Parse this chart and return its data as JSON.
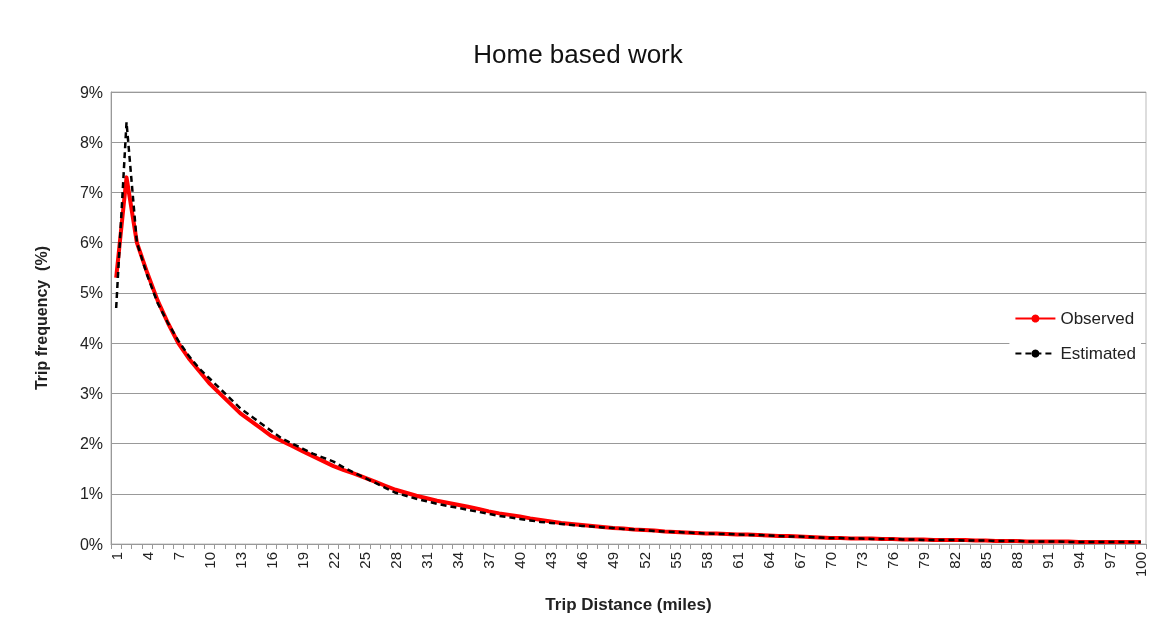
{
  "chart_data": {
    "type": "line",
    "title": "Home based work",
    "xlabel": "Trip Distance (miles)",
    "ylabel": "Trip frequency  (%)",
    "categories": [
      "1",
      null,
      null,
      "4",
      null,
      null,
      "7",
      null,
      null,
      "10",
      null,
      null,
      "13",
      null,
      null,
      "16",
      null,
      null,
      "19",
      null,
      null,
      "22",
      null,
      null,
      "25",
      null,
      null,
      "28",
      null,
      null,
      "31",
      null,
      null,
      "34",
      null,
      null,
      "37",
      null,
      null,
      "40",
      null,
      null,
      "43",
      null,
      null,
      "46",
      null,
      null,
      "49",
      null,
      null,
      "52",
      null,
      null,
      "55",
      null,
      null,
      "58",
      null,
      null,
      "61",
      null,
      null,
      "64",
      null,
      null,
      "67",
      null,
      null,
      "70",
      null,
      null,
      "73",
      null,
      null,
      "76",
      null,
      null,
      "79",
      null,
      null,
      "82",
      null,
      null,
      "85",
      null,
      null,
      "88",
      null,
      null,
      "91",
      null,
      null,
      "94",
      null,
      null,
      "97",
      null,
      null,
      "100"
    ],
    "series": [
      {
        "name": "Observed",
        "color": "#ff0000",
        "line_style": "solid",
        "values": [
          5.3,
          7.3,
          6.0,
          5.4,
          4.85,
          4.4,
          4.0,
          3.7,
          3.45,
          3.2,
          3.0,
          2.8,
          2.6,
          2.45,
          2.3,
          2.15,
          2.05,
          1.95,
          1.85,
          1.75,
          1.65,
          1.55,
          1.47,
          1.4,
          1.32,
          1.24,
          1.16,
          1.08,
          1.02,
          0.96,
          0.91,
          0.86,
          0.82,
          0.78,
          0.74,
          0.7,
          0.65,
          0.61,
          0.58,
          0.55,
          0.51,
          0.48,
          0.45,
          0.42,
          0.4,
          0.38,
          0.36,
          0.34,
          0.32,
          0.31,
          0.29,
          0.28,
          0.27,
          0.25,
          0.24,
          0.23,
          0.22,
          0.21,
          0.21,
          0.2,
          0.19,
          0.19,
          0.18,
          0.17,
          0.16,
          0.16,
          0.15,
          0.14,
          0.13,
          0.12,
          0.12,
          0.11,
          0.11,
          0.11,
          0.1,
          0.1,
          0.09,
          0.09,
          0.09,
          0.08,
          0.08,
          0.08,
          0.08,
          0.07,
          0.07,
          0.06,
          0.06,
          0.06,
          0.05,
          0.05,
          0.05,
          0.05,
          0.05,
          0.04,
          0.04,
          0.04,
          0.04,
          0.04,
          0.04,
          0.04
        ]
      },
      {
        "name": "Estimated",
        "color": "#000000",
        "line_style": "dashed",
        "values": [
          4.7,
          8.4,
          6.0,
          5.35,
          4.8,
          4.4,
          4.05,
          3.75,
          3.5,
          3.3,
          3.1,
          2.9,
          2.7,
          2.55,
          2.4,
          2.25,
          2.1,
          2.0,
          1.9,
          1.8,
          1.72,
          1.64,
          1.52,
          1.42,
          1.32,
          1.22,
          1.12,
          1.02,
          0.96,
          0.9,
          0.85,
          0.8,
          0.76,
          0.72,
          0.68,
          0.64,
          0.6,
          0.56,
          0.53,
          0.5,
          0.47,
          0.44,
          0.42,
          0.4,
          0.38,
          0.36,
          0.35,
          0.33,
          0.32,
          0.3,
          0.29,
          0.28,
          0.26,
          0.25,
          0.24,
          0.23,
          0.22,
          0.21,
          0.2,
          0.2,
          0.19,
          0.18,
          0.18,
          0.17,
          0.16,
          0.15,
          0.15,
          0.14,
          0.13,
          0.12,
          0.12,
          0.11,
          0.11,
          0.1,
          0.1,
          0.1,
          0.09,
          0.09,
          0.08,
          0.08,
          0.08,
          0.08,
          0.07,
          0.07,
          0.07,
          0.06,
          0.06,
          0.06,
          0.05,
          0.05,
          0.05,
          0.05,
          0.04,
          0.04,
          0.04,
          0.04,
          0.04,
          0.04,
          0.04,
          0.04
        ]
      }
    ],
    "ylim": [
      0,
      9
    ],
    "yticks": [
      {
        "value": 0,
        "label": "0%"
      },
      {
        "value": 1,
        "label": "1%"
      },
      {
        "value": 2,
        "label": "2%"
      },
      {
        "value": 3,
        "label": "3%"
      },
      {
        "value": 4,
        "label": "4%"
      },
      {
        "value": 5,
        "label": "5%"
      },
      {
        "value": 6,
        "label": "6%"
      },
      {
        "value": 7,
        "label": "7%"
      },
      {
        "value": 8,
        "label": "8%"
      },
      {
        "value": 9,
        "label": "9%"
      }
    ],
    "grid": "y",
    "legend": "right",
    "marker": "none"
  }
}
